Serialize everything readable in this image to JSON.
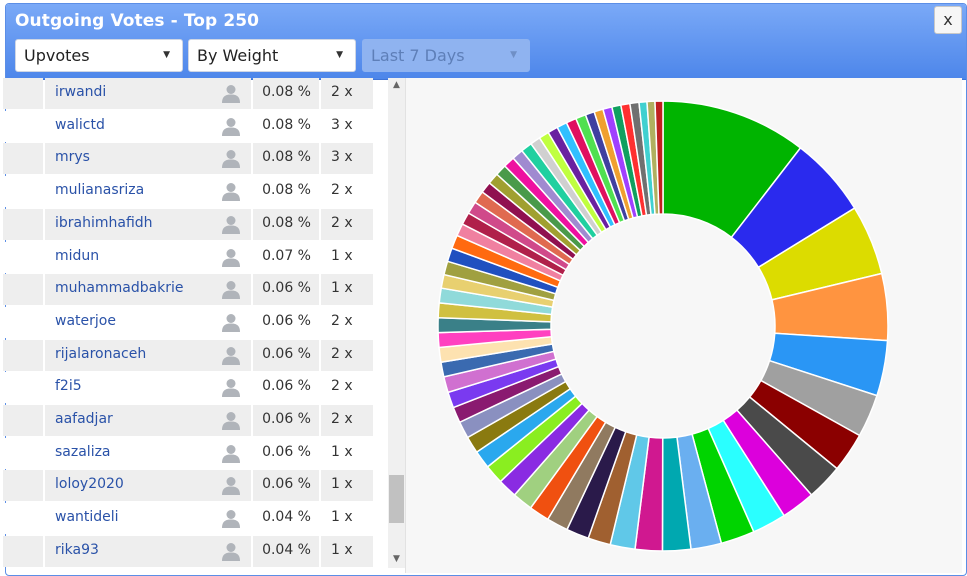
{
  "dialog": {
    "title": "Outgoing Votes - Top 250",
    "close_label": "x"
  },
  "filters": {
    "type": {
      "value": "Upvotes"
    },
    "sort": {
      "value": "By Weight"
    },
    "range": {
      "value": "Last 7 Days",
      "disabled": true
    }
  },
  "list": {
    "rows": [
      {
        "name": "irwandi",
        "percent": "0.08 %",
        "count": "2 x"
      },
      {
        "name": "walictd",
        "percent": "0.08 %",
        "count": "3 x"
      },
      {
        "name": "mrys",
        "percent": "0.08 %",
        "count": "3 x"
      },
      {
        "name": "mulianasriza",
        "percent": "0.08 %",
        "count": "2 x"
      },
      {
        "name": "ibrahimhafidh",
        "percent": "0.08 %",
        "count": "2 x"
      },
      {
        "name": "midun",
        "percent": "0.07 %",
        "count": "1 x"
      },
      {
        "name": "muhammadbakrie",
        "percent": "0.06 %",
        "count": "1 x"
      },
      {
        "name": "waterjoe",
        "percent": "0.06 %",
        "count": "2 x"
      },
      {
        "name": "rijalaronaceh",
        "percent": "0.06 %",
        "count": "2 x"
      },
      {
        "name": "f2i5",
        "percent": "0.06 %",
        "count": "2 x"
      },
      {
        "name": "aafadjar",
        "percent": "0.06 %",
        "count": "2 x"
      },
      {
        "name": "sazaliza",
        "percent": "0.06 %",
        "count": "1 x"
      },
      {
        "name": "loloy2020",
        "percent": "0.06 %",
        "count": "1 x"
      },
      {
        "name": "wantideli",
        "percent": "0.04 %",
        "count": "1 x"
      },
      {
        "name": "rika93",
        "percent": "0.04 %",
        "count": "1 x"
      }
    ]
  },
  "chart_data": {
    "type": "pie",
    "donut": true,
    "values": [
      12.9,
      7.1,
      6.2,
      5.9,
      4.9,
      3.8,
      3.5,
      3.2,
      3.0,
      3.0,
      3.0,
      2.7,
      2.5,
      2.4,
      2.2,
      2.0,
      2.0,
      1.9,
      1.8,
      1.8,
      1.7,
      1.7,
      1.6,
      1.5,
      1.5,
      1.4,
      1.4,
      1.4,
      1.3,
      1.3,
      1.3,
      1.3,
      1.3,
      1.3,
      1.2,
      1.2,
      1.2,
      1.2,
      1.1,
      1.1,
      1.1,
      1.1,
      1.0,
      1.0,
      1.0,
      1.0,
      1.0,
      1.0,
      0.9,
      0.9,
      0.9,
      0.9,
      0.9,
      0.9,
      0.8,
      0.8,
      0.8,
      0.8,
      0.8,
      0.8,
      0.7,
      0.7,
      0.7
    ],
    "colors": [
      "#00b400",
      "#2a2aee",
      "#dcdc00",
      "#ff9440",
      "#2a96f5",
      "#a0a0a0",
      "#8b0000",
      "#4a4a4a",
      "#dc00dc",
      "#2affff",
      "#00d400",
      "#6aaff0",
      "#00a8b0",
      "#d01890",
      "#60c8e8",
      "#a06030",
      "#2a1a4a",
      "#907a60",
      "#f05010",
      "#a0d080",
      "#8a2be2",
      "#8aee20",
      "#2aa8ee",
      "#8a7a10",
      "#8a90c0",
      "#8a1a70",
      "#7a3af0",
      "#d070d0",
      "#3a6ab0",
      "#fde2b0",
      "#ff40c0",
      "#3a8088",
      "#d0c040",
      "#90dada",
      "#e8d070",
      "#a0a040",
      "#2050c0",
      "#ff6a10",
      "#f080a0",
      "#b0204a",
      "#d04a8a",
      "#e06a50",
      "#901050",
      "#a0a030",
      "#4a9a4a",
      "#ee10a0",
      "#a08ad0",
      "#20d0a0",
      "#d0d0d0",
      "#c0ff40",
      "#6a20a0",
      "#30c0ff",
      "#e01060",
      "#50e050",
      "#4040a0",
      "#f0a030",
      "#a040ff",
      "#10a060",
      "#ff3030",
      "#707070",
      "#40d0d0",
      "#b0b060",
      "#c02020"
    ]
  }
}
